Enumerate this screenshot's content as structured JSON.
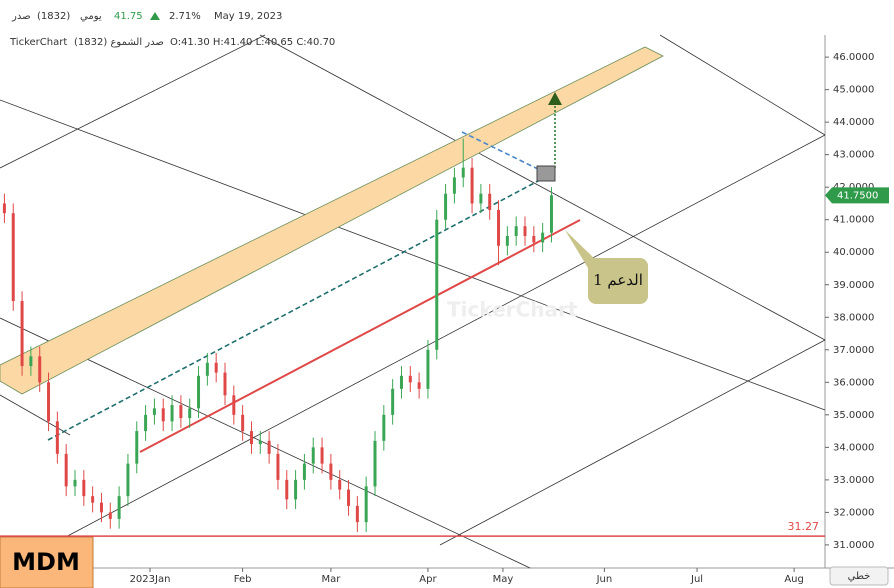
{
  "header": {
    "symbol": "صدر",
    "code": "(1832)",
    "period": "يومي",
    "last": "41.75",
    "change": "2.71%",
    "date": "May 19, 2023",
    "brand": "TickerChart",
    "study": "صدر الشموع (1832)",
    "ohlc": "O:41.30 H:41.40 L:40.65 C:40.70"
  },
  "chart_data": {
    "type": "candlestick",
    "x": [
      -33,
      -31,
      -29,
      -27,
      -25,
      -23,
      -21,
      -19,
      -17,
      -15,
      -13,
      -11,
      -9,
      -7,
      -5,
      -3,
      -1,
      1,
      3,
      5,
      7,
      9,
      11,
      13,
      15,
      17,
      19,
      21,
      23,
      25,
      27,
      29,
      31,
      33,
      35,
      37,
      39,
      41,
      43,
      45,
      47,
      49,
      51,
      53,
      55,
      57,
      59,
      61,
      63,
      65,
      67,
      69,
      71,
      73,
      75,
      77,
      79,
      81,
      83,
      85,
      87,
      89,
      91
    ],
    "open": [
      41.5,
      41.2,
      38.5,
      36.5,
      36.8,
      36.0,
      34.8,
      33.8,
      32.8,
      33.0,
      32.5,
      32.3,
      32.0,
      31.8,
      32.5,
      33.5,
      34.5,
      35.0,
      35.2,
      34.8,
      35.3,
      34.9,
      35.2,
      36.2,
      36.6,
      36.3,
      35.6,
      35.0,
      34.5,
      34.1,
      34.2,
      33.8,
      33.0,
      32.4,
      33.0,
      33.5,
      34.0,
      33.5,
      33.0,
      32.7,
      32.2,
      31.7,
      32.8,
      34.2,
      35.0,
      35.8,
      36.2,
      36.0,
      35.8,
      37.0,
      41.0,
      41.8,
      42.3,
      42.6,
      41.5,
      41.8,
      41.3,
      40.2,
      40.5,
      40.8,
      40.5,
      40.3,
      40.6
    ],
    "high": [
      41.8,
      41.5,
      38.8,
      37.1,
      37.1,
      36.3,
      35.1,
      34.1,
      33.3,
      33.3,
      32.8,
      32.6,
      32.3,
      32.8,
      33.8,
      34.8,
      35.3,
      35.5,
      35.5,
      35.6,
      35.6,
      35.5,
      36.5,
      36.9,
      36.9,
      36.6,
      35.9,
      35.3,
      34.8,
      34.5,
      34.5,
      34.1,
      33.3,
      33.3,
      33.8,
      34.3,
      34.3,
      33.8,
      33.3,
      33.0,
      32.5,
      33.1,
      34.5,
      35.3,
      36.1,
      36.5,
      36.5,
      36.3,
      37.3,
      41.3,
      42.1,
      42.6,
      43.5,
      42.9,
      42.1,
      42.1,
      41.6,
      40.8,
      41.1,
      41.1,
      40.8,
      40.9,
      42.0
    ],
    "low": [
      40.9,
      38.2,
      36.2,
      36.2,
      35.7,
      34.5,
      33.5,
      32.5,
      32.5,
      32.2,
      32.0,
      31.7,
      31.5,
      31.5,
      32.2,
      33.2,
      34.2,
      34.7,
      34.5,
      34.5,
      34.6,
      34.6,
      34.9,
      35.9,
      36.0,
      35.3,
      34.7,
      34.2,
      33.8,
      33.8,
      33.5,
      32.7,
      32.1,
      32.1,
      32.7,
      33.2,
      33.2,
      32.7,
      32.4,
      31.9,
      31.4,
      31.4,
      32.5,
      33.9,
      34.7,
      35.5,
      35.7,
      35.5,
      35.5,
      36.7,
      40.7,
      41.5,
      42.0,
      41.2,
      41.2,
      41.0,
      39.6,
      39.9,
      40.2,
      40.2,
      40.0,
      40.0,
      40.3
    ],
    "close": [
      41.2,
      38.5,
      36.5,
      36.8,
      36.0,
      34.8,
      33.8,
      32.8,
      33.0,
      32.5,
      32.3,
      32.0,
      31.8,
      32.5,
      33.5,
      34.5,
      35.0,
      35.2,
      34.8,
      35.3,
      34.9,
      35.2,
      36.2,
      36.6,
      36.3,
      35.6,
      35.0,
      34.5,
      34.1,
      34.2,
      33.8,
      33.0,
      32.4,
      33.0,
      33.5,
      34.0,
      33.5,
      33.0,
      32.7,
      32.2,
      31.7,
      32.8,
      34.2,
      35.0,
      35.8,
      36.2,
      36.0,
      35.8,
      37.0,
      41.0,
      41.8,
      42.3,
      42.6,
      41.5,
      41.8,
      41.3,
      40.2,
      40.5,
      40.8,
      40.5,
      40.3,
      40.6,
      41.75
    ],
    "up_color": "#3aa655",
    "down_color": "#e04848",
    "xlim": [
      -34,
      153
    ],
    "xticks": [
      {
        "value": 0,
        "label": "2023Jan"
      },
      {
        "value": 21,
        "label": "Feb"
      },
      {
        "value": 41,
        "label": "Mar"
      },
      {
        "value": 63,
        "label": "Apr"
      },
      {
        "value": 80,
        "label": "May"
      },
      {
        "value": 103,
        "label": "Jun"
      },
      {
        "value": 124,
        "label": "Jul"
      },
      {
        "value": 146,
        "label": "Aug"
      }
    ],
    "ylim": [
      30.29,
      46.68
    ],
    "yticks": [
      {
        "value": 31,
        "label": "31.0000"
      },
      {
        "value": 32,
        "label": "32.0000"
      },
      {
        "value": 33,
        "label": "33.0000"
      },
      {
        "value": 34,
        "label": "34.0000"
      },
      {
        "value": 35,
        "label": "35.0000"
      },
      {
        "value": 36,
        "label": "36.0000"
      },
      {
        "value": 37,
        "label": "37.0000"
      },
      {
        "value": 38,
        "label": "38.0000"
      },
      {
        "value": 39,
        "label": "39.0000"
      },
      {
        "value": 40,
        "label": "40.0000"
      },
      {
        "value": 41,
        "label": "41.0000"
      },
      {
        "value": 42,
        "label": "42.0000"
      },
      {
        "value": 43,
        "label": "43.0000"
      },
      {
        "value": 44,
        "label": "44.0000"
      },
      {
        "value": 45,
        "label": "45.0000"
      },
      {
        "value": 46,
        "label": "46.0000"
      }
    ],
    "last_price": {
      "value": 41.75,
      "label": "41.7500"
    },
    "support_level": 31.27,
    "annotation": "الدعم 1",
    "watermark": "TickerChart",
    "ticker_label": "MDM",
    "scale_mode": "خطي"
  }
}
